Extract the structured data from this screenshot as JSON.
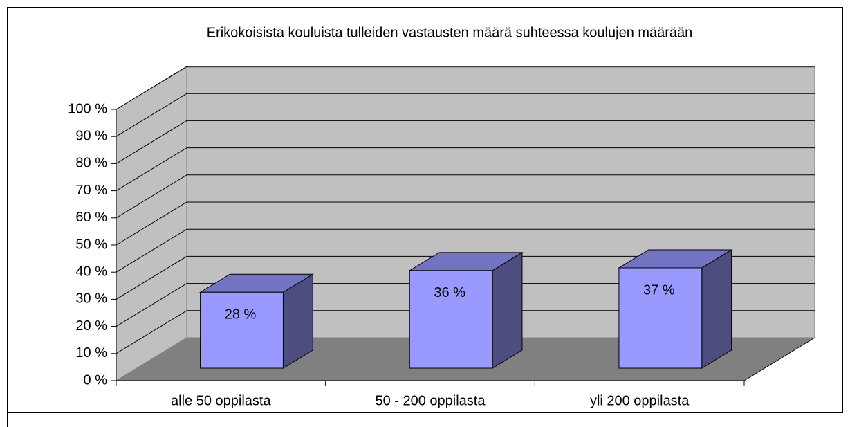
{
  "chart_data": {
    "type": "bar3d",
    "title": "Erikokoisista kouluista tulleiden vastausten määrä suhteessa koulujen määrään",
    "categories": [
      "alle 50 oppilasta",
      "50 - 200 oppilasta",
      "yli 200 oppilasta"
    ],
    "values": [
      28,
      36,
      37
    ],
    "value_labels": [
      "28 %",
      "36 %",
      "37 %"
    ],
    "color": "#9999ff",
    "ylim": [
      0,
      100
    ],
    "yticks": [
      {
        "value": 0,
        "label": "0 %"
      },
      {
        "value": 10,
        "label": "10 %"
      },
      {
        "value": 20,
        "label": "20 %"
      },
      {
        "value": 30,
        "label": "30 %"
      },
      {
        "value": 40,
        "label": "40 %"
      },
      {
        "value": 50,
        "label": "50 %"
      },
      {
        "value": 60,
        "label": "60 %"
      },
      {
        "value": 70,
        "label": "70 %"
      },
      {
        "value": 80,
        "label": "80 %"
      },
      {
        "value": 90,
        "label": "90 %"
      },
      {
        "value": 100,
        "label": "100 %"
      }
    ],
    "grid": true
  }
}
